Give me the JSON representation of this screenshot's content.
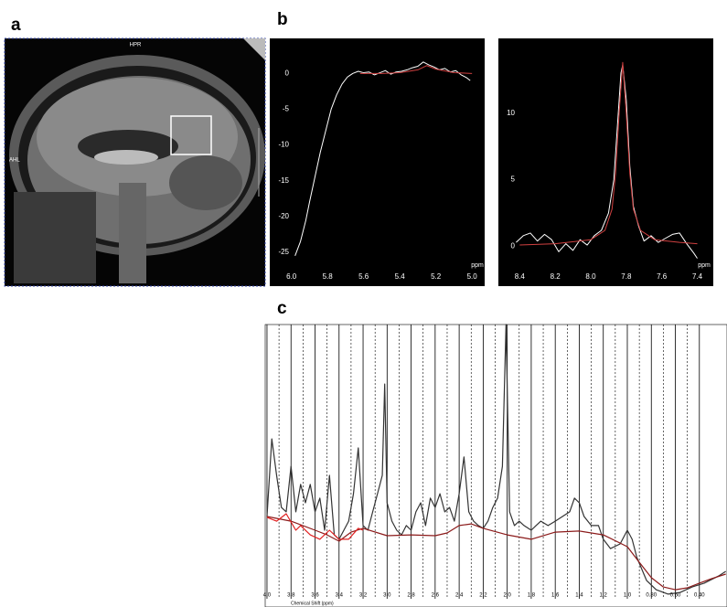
{
  "panel_labels": [
    "a",
    "b",
    "c"
  ],
  "mri": {
    "top_label": "HPR",
    "left_label": "AHL"
  },
  "chart_data": [
    {
      "type": "line",
      "background": "#000000",
      "axis_color": "#ffffff",
      "xlabel": "ppm",
      "xlim": [
        6.12,
        4.93
      ],
      "ylim": [
        -26.8,
        4.9
      ],
      "xticks": [
        {
          "value": 6,
          "label": "6.0"
        },
        5.8,
        5.6,
        5.4,
        5.2,
        {
          "value": 5,
          "label": "5.0"
        }
      ],
      "yticks": [
        0,
        -5,
        -10,
        -15,
        -20,
        -25
      ],
      "grid": false,
      "series": [
        {
          "color": "#ffffff",
          "x": [
            5.98,
            5.95,
            5.92,
            5.9,
            5.87,
            5.84,
            5.81,
            5.78,
            5.75,
            5.72,
            5.69,
            5.66,
            5.63,
            5.6,
            5.57,
            5.54,
            5.51,
            5.48,
            5.45,
            5.42,
            5.39,
            5.36,
            5.33,
            5.3,
            5.27,
            5.24,
            5.21,
            5.18,
            5.15,
            5.12,
            5.09,
            5.06,
            5.03,
            5.01
          ],
          "values": [
            -25.5,
            -23.5,
            -20.5,
            -18,
            -14.5,
            -11,
            -8,
            -5,
            -3,
            -1.5,
            -0.5,
            0,
            0.3,
            0.1,
            0.2,
            -0.2,
            0.1,
            0.4,
            -0.1,
            0.2,
            0.3,
            0.5,
            0.8,
            1,
            1.6,
            1.2,
            0.9,
            0.5,
            0.7,
            0.2,
            0.4,
            -0.2,
            -0.6,
            -1
          ]
        },
        {
          "color": "#d04040",
          "x": [
            5.62,
            5.5,
            5.4,
            5.3,
            5.25,
            5.2,
            5.1,
            5.0
          ],
          "values": [
            0,
            0,
            0.1,
            0.5,
            1.1,
            0.6,
            0.1,
            0
          ]
        }
      ]
    },
    {
      "type": "line",
      "background": "#000000",
      "axis_color": "#ffffff",
      "xlabel": "ppm",
      "xlim": [
        8.52,
        7.31
      ],
      "ylim": [
        -1.2,
        15.6
      ],
      "xticks": [
        8.4,
        8.2,
        {
          "value": 8,
          "label": "8.0"
        },
        7.8,
        7.6,
        7.4
      ],
      "yticks": [
        0,
        5,
        10
      ],
      "grid": false,
      "series": [
        {
          "color": "#ffffff",
          "x": [
            8.42,
            8.38,
            8.34,
            8.3,
            8.26,
            8.22,
            8.18,
            8.14,
            8.1,
            8.06,
            8.02,
            7.98,
            7.94,
            7.9,
            7.87,
            7.85,
            7.83,
            7.82,
            7.8,
            7.78,
            7.76,
            7.73,
            7.7,
            7.66,
            7.62,
            7.58,
            7.54,
            7.5,
            7.46,
            7.42,
            7.4
          ],
          "values": [
            0.3,
            0.8,
            1,
            0.4,
            0.9,
            0.5,
            -0.4,
            0.2,
            -0.3,
            0.5,
            0.1,
            0.8,
            1.2,
            2.5,
            5,
            9,
            13,
            13.6,
            11,
            6,
            3,
            1.5,
            0.4,
            0.8,
            0.3,
            0.6,
            0.9,
            1,
            0.2,
            -0.5,
            -0.9
          ]
        },
        {
          "color": "#d04040",
          "x": [
            8.4,
            8.2,
            8.0,
            7.92,
            7.88,
            7.86,
            7.84,
            7.82,
            7.8,
            7.78,
            7.76,
            7.72,
            7.64,
            7.5,
            7.4
          ],
          "values": [
            0.1,
            0.2,
            0.5,
            1.2,
            2.8,
            5.5,
            10,
            13.8,
            10,
            5.5,
            2.8,
            1.2,
            0.5,
            0.3,
            0.2
          ]
        }
      ]
    },
    {
      "type": "line",
      "background": "#ffffff",
      "axis_color": "#000000",
      "xlabel": "Chemical Shift (ppm)",
      "xlim": [
        4.015,
        0.17
      ],
      "ylim": [
        0,
        100
      ],
      "xticks": [
        {
          "value": 4,
          "label": "4.0"
        },
        3.8,
        3.6,
        3.4,
        3.2,
        {
          "value": 3,
          "label": "3.0"
        },
        2.8,
        2.6,
        2.4,
        2.2,
        {
          "value": 2,
          "label": "2.0"
        },
        1.8,
        1.6,
        1.4,
        1.2,
        {
          "value": 1,
          "label": "1.0"
        },
        {
          "value": 0.8,
          "label": "0.80"
        },
        {
          "value": 0.6,
          "label": "0.60"
        },
        {
          "value": 0.4,
          "label": "0.40"
        }
      ],
      "grid": true,
      "series": [
        {
          "color": "#333333",
          "x": [
            4.0,
            3.96,
            3.92,
            3.88,
            3.84,
            3.8,
            3.76,
            3.72,
            3.68,
            3.64,
            3.6,
            3.56,
            3.52,
            3.48,
            3.44,
            3.4,
            3.36,
            3.32,
            3.28,
            3.24,
            3.2,
            3.16,
            3.12,
            3.08,
            3.04,
            3.02,
            3.0,
            2.96,
            2.92,
            2.88,
            2.84,
            2.8,
            2.76,
            2.72,
            2.68,
            2.64,
            2.6,
            2.56,
            2.52,
            2.48,
            2.44,
            2.4,
            2.36,
            2.32,
            2.28,
            2.24,
            2.2,
            2.16,
            2.12,
            2.08,
            2.04,
            2.01,
            1.98,
            1.94,
            1.9,
            1.86,
            1.8,
            1.76,
            1.72,
            1.66,
            1.6,
            1.54,
            1.48,
            1.44,
            1.4,
            1.36,
            1.3,
            1.24,
            1.2,
            1.14,
            1.06,
            1.0,
            0.96,
            0.92,
            0.84,
            0.76,
            0.66,
            0.56,
            0.46,
            0.36,
            0.24,
            0.18
          ],
          "values": [
            30,
            58.3,
            45,
            33.3,
            31.7,
            48.3,
            31.7,
            41.7,
            35,
            41.7,
            31.7,
            36.7,
            25,
            45,
            23.3,
            21.7,
            25,
            28.3,
            38.3,
            55,
            26.7,
            25,
            31.7,
            38.3,
            45,
            78.3,
            35,
            28.3,
            25,
            23.3,
            26.7,
            25,
            31.7,
            35,
            26.7,
            36.7,
            33.3,
            38.3,
            31.7,
            33.3,
            28.3,
            38.3,
            51.7,
            31.7,
            28.3,
            26.7,
            25.7,
            28.3,
            33.3,
            36.7,
            48.3,
            100,
            31.7,
            26.7,
            28.3,
            26.7,
            25,
            26.7,
            28.3,
            26.7,
            28.3,
            30,
            31.7,
            36.7,
            35,
            30,
            26.7,
            26.7,
            21.7,
            18.3,
            20,
            25,
            21.7,
            15,
            6.7,
            3.3,
            1.7,
            2.3,
            4.3,
            5.7,
            8.3,
            10
          ]
        },
        {
          "color": "#8b1a1a",
          "x": [
            4.0,
            3.8,
            3.6,
            3.5,
            3.4,
            3.3,
            3.2,
            3.0,
            2.8,
            2.6,
            2.5,
            2.4,
            2.3,
            2.2,
            2.0,
            1.8,
            1.6,
            1.4,
            1.2,
            1.0,
            0.9,
            0.8,
            0.7,
            0.6,
            0.5,
            0.4,
            0.3,
            0.18
          ],
          "values": [
            30,
            28.3,
            25,
            23.3,
            21,
            24.3,
            25.7,
            23,
            23.3,
            23,
            24,
            26.7,
            27.3,
            25.7,
            23.3,
            21.7,
            24.3,
            24.7,
            23.3,
            19,
            13.3,
            7.7,
            4.3,
            3.3,
            4,
            5.7,
            7.3,
            9
          ]
        },
        {
          "color": "#e02020",
          "x": [
            4.0,
            3.92,
            3.84,
            3.76,
            3.72,
            3.64,
            3.56,
            3.48,
            3.4,
            3.32,
            3.24,
            3.2
          ],
          "values": [
            29.7,
            28.3,
            31,
            25,
            26.7,
            23.3,
            21.7,
            25,
            21.7,
            21.7,
            25.7,
            25
          ]
        }
      ]
    }
  ]
}
